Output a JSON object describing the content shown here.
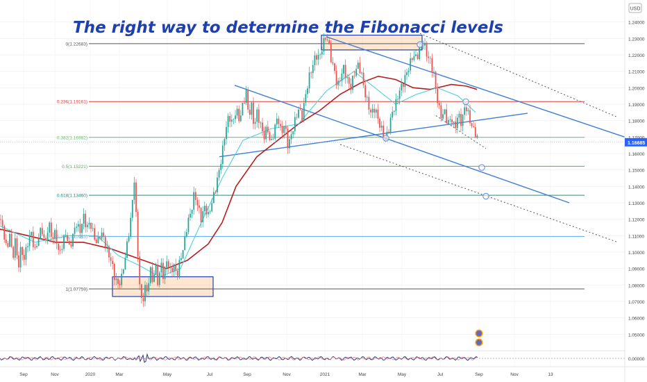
{
  "chart_data": {
    "type": "candlestick",
    "title": "The right way to determine the Fibonacci levels",
    "currency": "USD",
    "price_axis": {
      "min": 1.04,
      "max": 1.25,
      "ticks": [
        "1.24000",
        "1.23000",
        "1.22000",
        "1.21000",
        "1.20000",
        "1.19000",
        "1.18000",
        "1.17000",
        "1.16000",
        "1.15000",
        "1.14000",
        "1.13000",
        "1.12000",
        "1.11000",
        "1.10000",
        "1.09000",
        "1.08000",
        "1.07000",
        "1.06000",
        "1.05000"
      ],
      "current_price": "1.16685",
      "indicator_tick": "0.00000"
    },
    "time_axis": {
      "labels": [
        "Sep",
        "Nov",
        "2020",
        "Mar",
        "May",
        "Jul",
        "Sep",
        "Nov",
        "2021",
        "Mar",
        "May",
        "Jul",
        "Sep",
        "Nov",
        "13"
      ]
    },
    "fibonacci_levels": [
      {
        "label": "0(1.22683)",
        "value": 1.22683,
        "color": "#555555"
      },
      {
        "label": "0.236(1.19161)",
        "value": 1.19161,
        "color": "#e53935"
      },
      {
        "label": "0.382(1.16982)",
        "value": 1.16982,
        "color": "#66bb6a"
      },
      {
        "label": "0.5(1.15221)",
        "value": 1.15221,
        "color": "#4caf50"
      },
      {
        "label": "0.618(1.13460)",
        "value": 1.1346,
        "color": "#089981"
      },
      {
        "label": "0.786(1.10953)",
        "value": 1.10953,
        "color": "#64b5f6"
      },
      {
        "label": "1(1.07759)",
        "value": 1.07759,
        "color": "#555555"
      }
    ],
    "price_path": [
      [
        0,
        1.12
      ],
      [
        5,
        1.113
      ],
      [
        10,
        1.1
      ],
      [
        14,
        1.112
      ],
      [
        18,
        1.095
      ],
      [
        22,
        1.108
      ],
      [
        26,
        1.09
      ],
      [
        30,
        1.102
      ],
      [
        35,
        1.096
      ],
      [
        40,
        1.106
      ],
      [
        45,
        1.112
      ],
      [
        50,
        1.1
      ],
      [
        55,
        1.108
      ],
      [
        60,
        1.115
      ],
      [
        65,
        1.104
      ],
      [
        70,
        1.118
      ],
      [
        75,
        1.108
      ],
      [
        80,
        1.112
      ],
      [
        85,
        1.098
      ],
      [
        90,
        1.105
      ],
      [
        95,
        1.112
      ],
      [
        100,
        1.102
      ],
      [
        105,
        1.11
      ],
      [
        110,
        1.118
      ],
      [
        115,
        1.112
      ],
      [
        120,
        1.122
      ],
      [
        125,
        1.115
      ],
      [
        130,
        1.118
      ],
      [
        135,
        1.11
      ],
      [
        140,
        1.105
      ],
      [
        145,
        1.112
      ],
      [
        150,
        1.108
      ],
      [
        155,
        1.1
      ],
      [
        160,
        1.095
      ],
      [
        165,
        1.085
      ],
      [
        170,
        1.08
      ],
      [
        175,
        1.084
      ],
      [
        180,
        1.096
      ],
      [
        185,
        1.11
      ],
      [
        190,
        1.125
      ],
      [
        193,
        1.148
      ],
      [
        196,
        1.122
      ],
      [
        199,
        1.095
      ],
      [
        202,
        1.076
      ],
      [
        205,
        1.066
      ],
      [
        208,
        1.08
      ],
      [
        212,
        1.075
      ],
      [
        216,
        1.09
      ],
      [
        220,
        1.082
      ],
      [
        224,
        1.092
      ],
      [
        228,
        1.08
      ],
      [
        232,
        1.094
      ],
      [
        236,
        1.083
      ],
      [
        240,
        1.096
      ],
      [
        245,
        1.088
      ],
      [
        250,
        1.092
      ],
      [
        255,
        1.086
      ],
      [
        260,
        1.096
      ],
      [
        265,
        1.104
      ],
      [
        270,
        1.118
      ],
      [
        275,
        1.124
      ],
      [
        280,
        1.136
      ],
      [
        285,
        1.128
      ],
      [
        290,
        1.12
      ],
      [
        295,
        1.128
      ],
      [
        300,
        1.122
      ],
      [
        305,
        1.13
      ],
      [
        310,
        1.138
      ],
      [
        315,
        1.148
      ],
      [
        320,
        1.16
      ],
      [
        325,
        1.175
      ],
      [
        330,
        1.183
      ],
      [
        335,
        1.178
      ],
      [
        340,
        1.187
      ],
      [
        345,
        1.18
      ],
      [
        350,
        1.19
      ],
      [
        355,
        1.198
      ],
      [
        358,
        1.182
      ],
      [
        362,
        1.19
      ],
      [
        366,
        1.176
      ],
      [
        370,
        1.185
      ],
      [
        375,
        1.178
      ],
      [
        380,
        1.17
      ],
      [
        385,
        1.176
      ],
      [
        390,
        1.165
      ],
      [
        395,
        1.174
      ],
      [
        400,
        1.183
      ],
      [
        405,
        1.172
      ],
      [
        410,
        1.178
      ],
      [
        415,
        1.164
      ],
      [
        420,
        1.172
      ],
      [
        425,
        1.18
      ],
      [
        430,
        1.187
      ],
      [
        435,
        1.182
      ],
      [
        440,
        1.195
      ],
      [
        445,
        1.206
      ],
      [
        450,
        1.213
      ],
      [
        455,
        1.22
      ],
      [
        460,
        1.218
      ],
      [
        465,
        1.226
      ],
      [
        470,
        1.232
      ],
      [
        474,
        1.225
      ],
      [
        478,
        1.215
      ],
      [
        482,
        1.21
      ],
      [
        486,
        1.2
      ],
      [
        490,
        1.206
      ],
      [
        495,
        1.212
      ],
      [
        500,
        1.205
      ],
      [
        505,
        1.2
      ],
      [
        510,
        1.208
      ],
      [
        515,
        1.214
      ],
      [
        520,
        1.21
      ],
      [
        525,
        1.198
      ],
      [
        530,
        1.19
      ],
      [
        535,
        1.184
      ],
      [
        540,
        1.188
      ],
      [
        545,
        1.18
      ],
      [
        550,
        1.174
      ],
      [
        555,
        1.168
      ],
      [
        560,
        1.175
      ],
      [
        565,
        1.185
      ],
      [
        570,
        1.19
      ],
      [
        575,
        1.198
      ],
      [
        580,
        1.202
      ],
      [
        585,
        1.208
      ],
      [
        590,
        1.214
      ],
      [
        595,
        1.22
      ],
      [
        600,
        1.218
      ],
      [
        605,
        1.224
      ],
      [
        610,
        1.228
      ],
      [
        615,
        1.22
      ],
      [
        620,
        1.216
      ],
      [
        625,
        1.208
      ],
      [
        628,
        1.198
      ],
      [
        632,
        1.188
      ],
      [
        636,
        1.182
      ],
      [
        640,
        1.186
      ],
      [
        645,
        1.178
      ],
      [
        650,
        1.182
      ],
      [
        655,
        1.175
      ],
      [
        660,
        1.184
      ],
      [
        665,
        1.178
      ],
      [
        670,
        1.19
      ],
      [
        675,
        1.183
      ],
      [
        680,
        1.176
      ],
      [
        685,
        1.172
      ],
      [
        690,
        1.166
      ]
    ],
    "moving_averages": [
      {
        "color": "#b71c1c",
        "points": [
          [
            0,
            1.114
          ],
          [
            40,
            1.11
          ],
          [
            80,
            1.106
          ],
          [
            120,
            1.106
          ],
          [
            160,
            1.102
          ],
          [
            200,
            1.096
          ],
          [
            240,
            1.09
          ],
          [
            270,
            1.095
          ],
          [
            300,
            1.105
          ],
          [
            320,
            1.118
          ],
          [
            340,
            1.14
          ],
          [
            370,
            1.158
          ],
          [
            400,
            1.168
          ],
          [
            430,
            1.178
          ],
          [
            460,
            1.186
          ],
          [
            490,
            1.196
          ],
          [
            520,
            1.203
          ],
          [
            545,
            1.207
          ],
          [
            570,
            1.205
          ],
          [
            595,
            1.2
          ],
          [
            620,
            1.199
          ],
          [
            650,
            1.202
          ],
          [
            672,
            1.201
          ],
          [
            687,
            1.199
          ]
        ]
      },
      {
        "color": "#4dd0e1",
        "points": [
          [
            0,
            1.116
          ],
          [
            50,
            1.106
          ],
          [
            100,
            1.11
          ],
          [
            140,
            1.11
          ],
          [
            170,
            1.098
          ],
          [
            200,
            1.092
          ],
          [
            230,
            1.085
          ],
          [
            260,
            1.09
          ],
          [
            290,
            1.118
          ],
          [
            320,
            1.145
          ],
          [
            350,
            1.168
          ],
          [
            390,
            1.175
          ],
          [
            430,
            1.178
          ],
          [
            470,
            1.198
          ],
          [
            510,
            1.21
          ],
          [
            540,
            1.2
          ],
          [
            570,
            1.19
          ],
          [
            600,
            1.196
          ],
          [
            630,
            1.2
          ],
          [
            660,
            1.195
          ],
          [
            685,
            1.185
          ]
        ]
      }
    ],
    "trend_lines": [
      {
        "color": "#3b7dd8",
        "width": 1.4,
        "dash": "",
        "from": [
          338,
          1.2015
        ],
        "to": [
          820,
          1.13
        ]
      },
      {
        "color": "#3b7dd8",
        "width": 1.4,
        "dash": "",
        "from": [
          470,
          1.231
        ],
        "to": [
          900,
          1.17
        ]
      },
      {
        "color": "#3b7dd8",
        "width": 1.4,
        "dash": "",
        "from": [
          316,
          1.158
        ],
        "to": [
          760,
          1.1845
        ]
      },
      {
        "color": "#555555",
        "width": 1,
        "dash": "2 3",
        "from": [
          605,
          1.233
        ],
        "to": [
          890,
          1.182
        ]
      },
      {
        "color": "#555555",
        "width": 1,
        "dash": "2 3",
        "from": [
          490,
          1.1655
        ],
        "to": [
          890,
          1.106
        ]
      },
      {
        "color": "#555555",
        "width": 1,
        "dash": "2 3",
        "from": [
          628,
          1.183
        ],
        "to": [
          700,
          1.163
        ]
      }
    ],
    "zones": [
      {
        "x1": 162,
        "x2": 307,
        "top": 1.085,
        "bottom": 1.073
      },
      {
        "x1": 463,
        "x2": 608,
        "top": 1.232,
        "bottom": 1.223
      }
    ],
    "markers": [
      {
        "x": 556,
        "y": 1.1693
      },
      {
        "x": 605,
        "y": 1.2263
      },
      {
        "x": 671,
        "y": 1.1915
      },
      {
        "x": 694,
        "y": 1.1515
      },
      {
        "x": 700,
        "y": 1.134
      }
    ]
  }
}
